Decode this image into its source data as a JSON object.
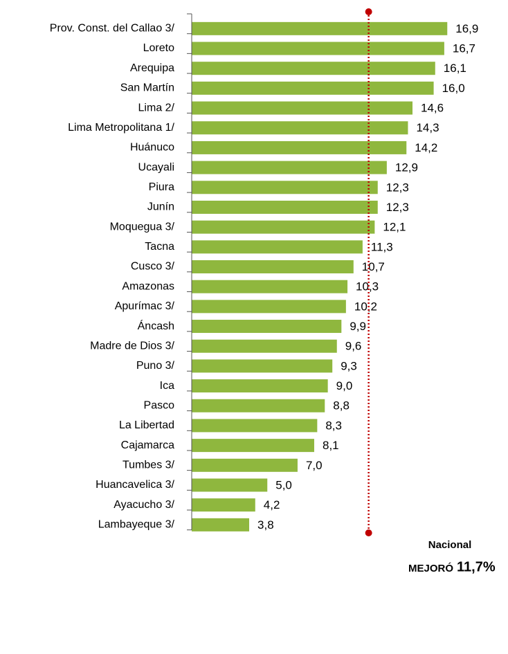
{
  "chart_data": {
    "type": "bar",
    "orientation": "horizontal",
    "categories": [
      "Prov. Const. del Callao 3/",
      "Loreto",
      "Arequipa",
      "San Martín",
      "Lima 2/",
      "Lima Metropolitana 1/",
      "Huánuco",
      "Ucayali",
      "Piura",
      "Junín",
      "Moquegua 3/",
      "Tacna",
      "Cusco 3/",
      "Amazonas",
      "Apurímac 3/",
      "Áncash",
      "Madre de Dios 3/",
      "Puno 3/",
      "Ica",
      "Pasco",
      "La Libertad",
      "Cajamarca",
      "Tumbes 3/",
      "Huancavelica 3/",
      "Ayacucho 3/",
      "Lambayeque 3/"
    ],
    "values": [
      16.9,
      16.7,
      16.1,
      16.0,
      14.6,
      14.3,
      14.2,
      12.9,
      12.3,
      12.3,
      12.1,
      11.3,
      10.7,
      10.3,
      10.2,
      9.9,
      9.6,
      9.3,
      9.0,
      8.8,
      8.3,
      8.1,
      7.0,
      5.0,
      4.2,
      3.8
    ],
    "value_labels": [
      "16,9",
      "16,7",
      "16,1",
      "16,0",
      "14,6",
      "14,3",
      "14,2",
      "12,9",
      "12,3",
      "12,3",
      "12,1",
      "11,3",
      "10,7",
      "10,3",
      "10,2",
      "9,9",
      "9,6",
      "9,3",
      "9,0",
      "8,8",
      "8,3",
      "8,1",
      "7,0",
      "5,0",
      "4,2",
      "3,8"
    ],
    "color": "#8fb73e",
    "xlim": [
      0,
      20
    ],
    "reference_line": {
      "value": 11.7,
      "color": "#c00000"
    },
    "annotation": {
      "line1": "Nacional",
      "line2": "MEJORÓ",
      "value_label": "11,7%"
    }
  }
}
